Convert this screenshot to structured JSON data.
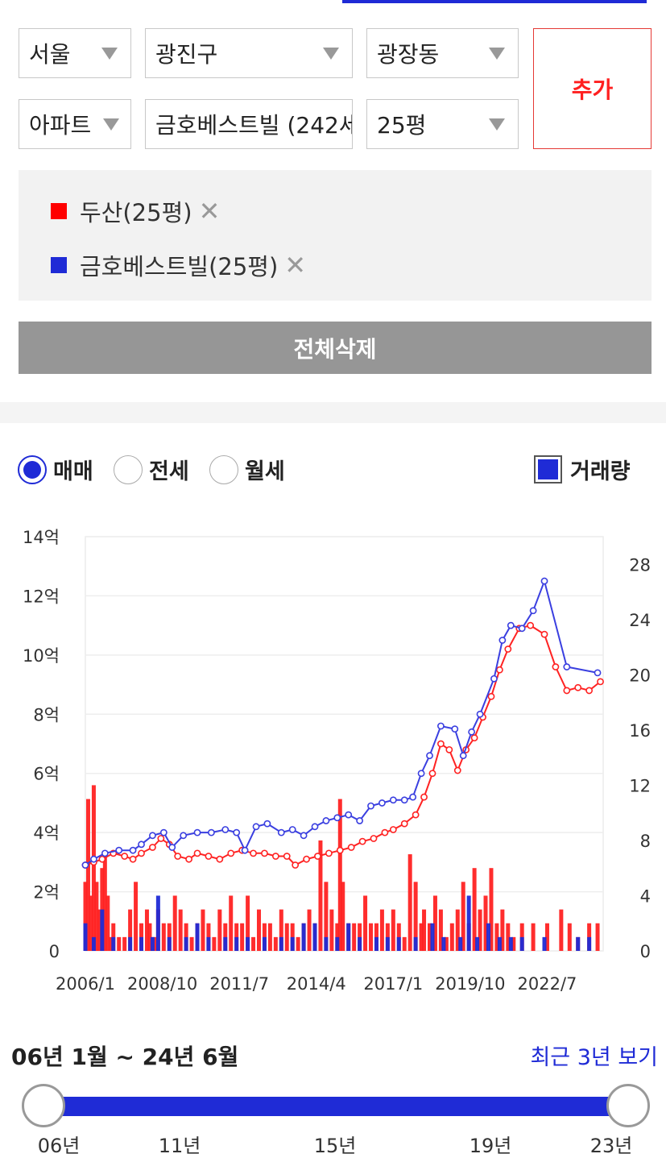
{
  "filters": {
    "city": "서울",
    "district": "광진구",
    "dong": "광장동",
    "type": "아파트",
    "complex": "금호베스트빌 (242세",
    "size": "25평",
    "add_label": "추가"
  },
  "compare_list": [
    {
      "label": "두산(25평)",
      "color": "#ff0000"
    },
    {
      "label": "금호베스트빌(25평)",
      "color": "#1f2bd6"
    }
  ],
  "delete_all_label": "전체삭제",
  "trade_type": {
    "options": [
      "매매",
      "전세",
      "월세"
    ],
    "selected": "매매"
  },
  "volume_toggle": {
    "label": "거래량",
    "checked": true
  },
  "colors": {
    "series1": "#ff2222",
    "series2": "#3a3fe0",
    "accent": "#1f2bd6"
  },
  "chart_data": {
    "type": "line",
    "x_tick_labels": [
      "2006/1",
      "2008/10",
      "2011/7",
      "2014/4",
      "2017/1",
      "2019/10",
      "2022/7"
    ],
    "y_left_labels": [
      "0",
      "2억",
      "4억",
      "6억",
      "8억",
      "10억",
      "12억",
      "14억"
    ],
    "y_left_range": [
      0,
      14
    ],
    "y_right_labels": [
      "0",
      "4",
      "8",
      "12",
      "16",
      "20",
      "24",
      "28"
    ],
    "y_right_range": [
      0,
      30
    ],
    "x_range": [
      2006.0,
      2024.5
    ],
    "series": [
      {
        "name": "두산(25평)",
        "color": "#ff2222",
        "points": [
          [
            2006.0,
            2.9
          ],
          [
            2006.3,
            3.0
          ],
          [
            2006.6,
            3.1
          ],
          [
            2007.0,
            3.3
          ],
          [
            2007.4,
            3.2
          ],
          [
            2007.7,
            3.1
          ],
          [
            2008.0,
            3.3
          ],
          [
            2008.4,
            3.5
          ],
          [
            2008.7,
            3.8
          ],
          [
            2009.0,
            3.6
          ],
          [
            2009.3,
            3.2
          ],
          [
            2009.7,
            3.1
          ],
          [
            2010.0,
            3.3
          ],
          [
            2010.4,
            3.2
          ],
          [
            2010.8,
            3.1
          ],
          [
            2011.2,
            3.3
          ],
          [
            2011.6,
            3.4
          ],
          [
            2012.0,
            3.3
          ],
          [
            2012.4,
            3.3
          ],
          [
            2012.8,
            3.2
          ],
          [
            2013.2,
            3.2
          ],
          [
            2013.5,
            2.9
          ],
          [
            2013.9,
            3.1
          ],
          [
            2014.3,
            3.2
          ],
          [
            2014.7,
            3.3
          ],
          [
            2015.1,
            3.4
          ],
          [
            2015.5,
            3.5
          ],
          [
            2015.9,
            3.7
          ],
          [
            2016.3,
            3.8
          ],
          [
            2016.7,
            4.0
          ],
          [
            2017.0,
            4.1
          ],
          [
            2017.4,
            4.3
          ],
          [
            2017.8,
            4.6
          ],
          [
            2018.1,
            5.2
          ],
          [
            2018.4,
            6.0
          ],
          [
            2018.7,
            7.0
          ],
          [
            2019.0,
            6.8
          ],
          [
            2019.3,
            6.1
          ],
          [
            2019.6,
            6.8
          ],
          [
            2019.9,
            7.2
          ],
          [
            2020.2,
            7.9
          ],
          [
            2020.5,
            8.6
          ],
          [
            2020.8,
            9.5
          ],
          [
            2021.1,
            10.2
          ],
          [
            2021.5,
            10.9
          ],
          [
            2021.9,
            11.0
          ],
          [
            2022.4,
            10.7
          ],
          [
            2022.8,
            9.6
          ],
          [
            2023.2,
            8.8
          ],
          [
            2023.6,
            8.9
          ],
          [
            2024.0,
            8.8
          ],
          [
            2024.4,
            9.1
          ]
        ]
      },
      {
        "name": "금호베스트빌(25평)",
        "color": "#3a3fe0",
        "points": [
          [
            2006.0,
            2.9
          ],
          [
            2006.3,
            3.1
          ],
          [
            2006.7,
            3.3
          ],
          [
            2007.2,
            3.4
          ],
          [
            2007.7,
            3.4
          ],
          [
            2008.0,
            3.6
          ],
          [
            2008.4,
            3.9
          ],
          [
            2008.8,
            4.0
          ],
          [
            2009.1,
            3.5
          ],
          [
            2009.5,
            3.9
          ],
          [
            2010.0,
            4.0
          ],
          [
            2010.5,
            4.0
          ],
          [
            2011.0,
            4.1
          ],
          [
            2011.4,
            4.0
          ],
          [
            2011.7,
            3.4
          ],
          [
            2012.1,
            4.2
          ],
          [
            2012.5,
            4.3
          ],
          [
            2013.0,
            4.0
          ],
          [
            2013.4,
            4.1
          ],
          [
            2013.8,
            3.9
          ],
          [
            2014.2,
            4.2
          ],
          [
            2014.6,
            4.4
          ],
          [
            2015.0,
            4.5
          ],
          [
            2015.4,
            4.6
          ],
          [
            2015.8,
            4.4
          ],
          [
            2016.2,
            4.9
          ],
          [
            2016.6,
            5.0
          ],
          [
            2017.0,
            5.1
          ],
          [
            2017.4,
            5.1
          ],
          [
            2017.7,
            5.2
          ],
          [
            2018.0,
            6.0
          ],
          [
            2018.3,
            6.6
          ],
          [
            2018.7,
            7.6
          ],
          [
            2019.2,
            7.5
          ],
          [
            2019.5,
            6.6
          ],
          [
            2019.8,
            7.4
          ],
          [
            2020.1,
            8.0
          ],
          [
            2020.6,
            9.2
          ],
          [
            2020.9,
            10.5
          ],
          [
            2021.2,
            11.0
          ],
          [
            2021.6,
            10.9
          ],
          [
            2022.0,
            11.5
          ],
          [
            2022.4,
            12.5
          ],
          [
            2023.2,
            9.6
          ],
          [
            2024.3,
            9.4
          ]
        ]
      }
    ],
    "volume_series": [
      {
        "name": "두산(25평)",
        "color": "#ff2222",
        "x": [
          2006.0,
          2006.1,
          2006.2,
          2006.3,
          2006.4,
          2006.5,
          2006.6,
          2006.7,
          2006.8,
          2006.9,
          2007.0,
          2007.2,
          2007.4,
          2007.6,
          2007.8,
          2008.0,
          2008.2,
          2008.3,
          2008.4,
          2008.5,
          2008.6,
          2008.8,
          2009.0,
          2009.2,
          2009.4,
          2009.6,
          2009.8,
          2010.0,
          2010.2,
          2010.4,
          2010.6,
          2010.8,
          2011.0,
          2011.2,
          2011.4,
          2011.6,
          2011.8,
          2012.0,
          2012.2,
          2012.4,
          2012.6,
          2012.8,
          2013.0,
          2013.2,
          2013.4,
          2013.6,
          2013.8,
          2014.0,
          2014.2,
          2014.4,
          2014.6,
          2014.8,
          2015.0,
          2015.1,
          2015.2,
          2015.4,
          2015.6,
          2015.8,
          2016.0,
          2016.2,
          2016.4,
          2016.6,
          2016.8,
          2017.0,
          2017.2,
          2017.4,
          2017.6,
          2017.8,
          2018.0,
          2018.1,
          2018.3,
          2018.5,
          2018.7,
          2018.9,
          2019.1,
          2019.3,
          2019.5,
          2019.7,
          2019.9,
          2020.1,
          2020.3,
          2020.5,
          2020.7,
          2020.9,
          2021.1,
          2021.3,
          2021.6,
          2022.0,
          2022.5,
          2023.0,
          2023.3,
          2023.6,
          2024.0,
          2024.3
        ],
        "values": [
          5,
          11,
          4,
          12,
          5,
          3,
          6,
          7,
          4,
          1,
          2,
          1,
          1,
          3,
          5,
          2,
          3,
          2,
          1,
          1,
          3,
          2,
          2,
          4,
          3,
          2,
          1,
          2,
          3,
          2,
          1,
          3,
          2,
          4,
          2,
          2,
          4,
          1,
          3,
          2,
          2,
          1,
          3,
          2,
          2,
          1,
          2,
          3,
          2,
          8,
          5,
          3,
          2,
          11,
          5,
          2,
          2,
          2,
          4,
          2,
          2,
          3,
          2,
          3,
          2,
          1,
          7,
          5,
          2,
          3,
          2,
          4,
          3,
          1,
          2,
          3,
          5,
          2,
          6,
          3,
          4,
          6,
          2,
          3,
          2,
          1,
          2,
          2,
          2,
          3,
          2,
          1,
          2,
          2
        ]
      },
      {
        "name": "금호베스트빌(25평)",
        "color": "#1f2bd6",
        "x": [
          2006.0,
          2006.3,
          2006.6,
          2007.0,
          2007.6,
          2008.0,
          2008.4,
          2008.6,
          2009.0,
          2009.6,
          2010.0,
          2010.4,
          2011.0,
          2011.4,
          2011.8,
          2012.4,
          2013.0,
          2013.4,
          2013.8,
          2014.2,
          2014.6,
          2015.0,
          2015.4,
          2015.8,
          2016.4,
          2016.8,
          2017.2,
          2017.8,
          2018.4,
          2018.8,
          2019.4,
          2019.7,
          2020.0,
          2020.4,
          2020.8,
          2021.2,
          2021.6,
          2022.4,
          2023.6,
          2024.0
        ],
        "values": [
          2,
          1,
          3,
          1,
          1,
          1,
          1,
          4,
          1,
          1,
          2,
          1,
          1,
          1,
          1,
          1,
          1,
          1,
          2,
          2,
          1,
          1,
          2,
          1,
          1,
          1,
          1,
          1,
          2,
          1,
          1,
          4,
          1,
          2,
          1,
          1,
          1,
          1,
          1,
          1
        ]
      }
    ],
    "legend": "top-right",
    "grid": true
  },
  "date_range": {
    "label": "06년 1월 ~ 24년 6월",
    "recent_label": "최근 3년 보기",
    "ticks": [
      "06년",
      "11년",
      "15년",
      "19년",
      "23년"
    ]
  }
}
